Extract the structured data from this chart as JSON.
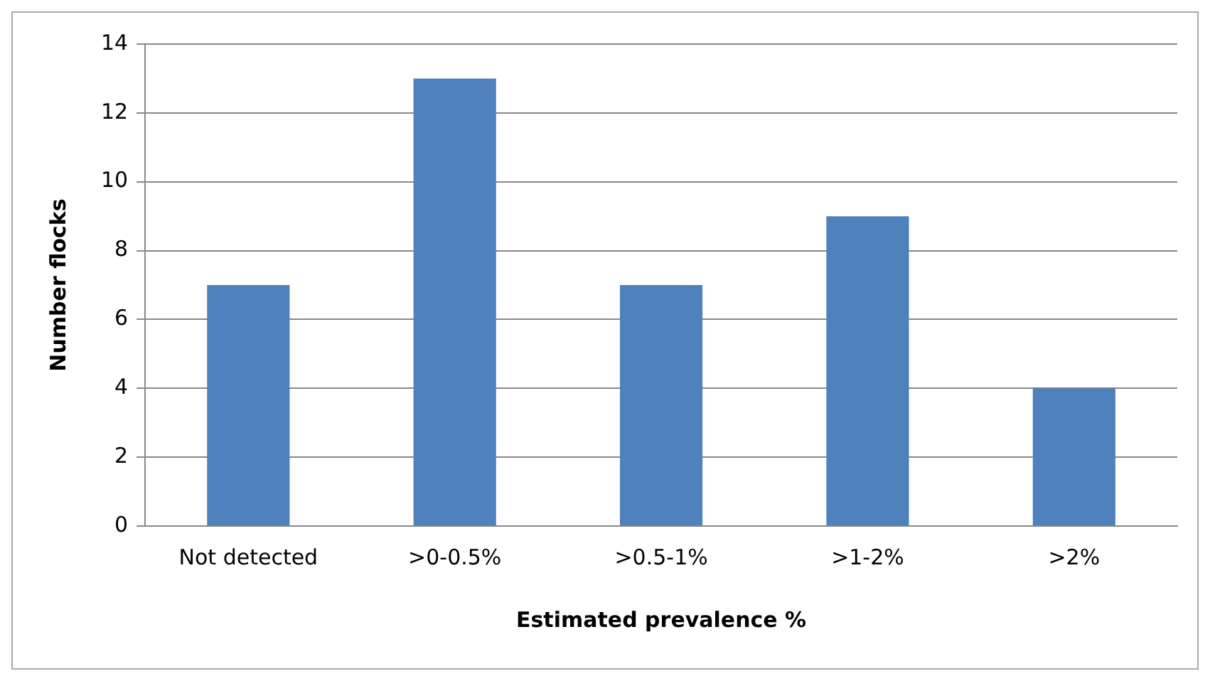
{
  "chart_data": {
    "type": "bar",
    "xlabel": "Estimated prevalence %",
    "ylabel": "Number flocks",
    "categories": [
      "Not detected",
      ">0-0.5%",
      ">0.5-1%",
      ">1-2%",
      ">2%"
    ],
    "values": [
      7,
      13,
      7,
      9,
      4
    ],
    "color": "#4f81bd",
    "ylim": [
      0,
      14
    ],
    "yticks": [
      0,
      2,
      4,
      6,
      8,
      10,
      12,
      14
    ],
    "grid": "y"
  }
}
